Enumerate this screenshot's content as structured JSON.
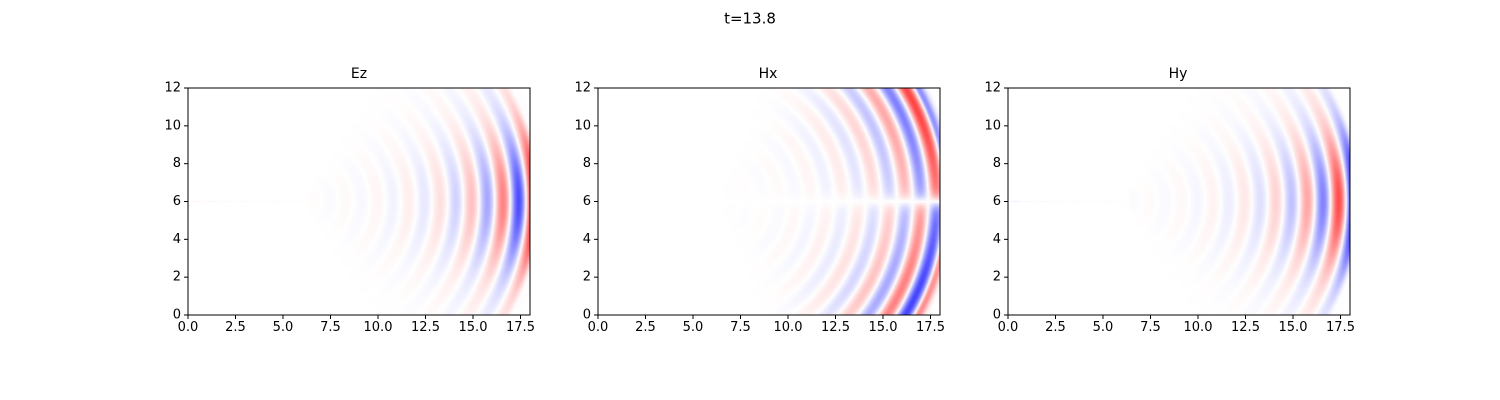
{
  "figure": {
    "suptitle": "t=13.8"
  },
  "colors": {
    "positive": "#ff0000",
    "negative": "#0000ff",
    "zero": "#ffffff",
    "axes": "#000000"
  },
  "chart_data": [
    {
      "type": "heatmap",
      "title": "Ez",
      "xlabel": "",
      "ylabel": "",
      "xlim": [
        0,
        18
      ],
      "ylim": [
        0,
        12
      ],
      "xticks": [
        0,
        2.5,
        5,
        7.5,
        10,
        12.5,
        15,
        17.5
      ],
      "xtick_labels": [
        "0.0",
        "2.5",
        "5.0",
        "7.5",
        "10.0",
        "12.5",
        "15.0",
        "17.5"
      ],
      "yticks": [
        0,
        2,
        4,
        6,
        8,
        10,
        12
      ],
      "ytick_labels": [
        "0",
        "2",
        "4",
        "6",
        "8",
        "10",
        "12"
      ],
      "colormap": "bwr",
      "field": {
        "description_free_params": true,
        "wave_center": [
          6,
          6
        ],
        "front_radius": 12.2,
        "wavelength": 1.65,
        "transverse_profile": "symmetric",
        "peak": 1.0,
        "phase": 0.0
      }
    },
    {
      "type": "heatmap",
      "title": "Hx",
      "xlabel": "",
      "ylabel": "",
      "xlim": [
        0,
        18
      ],
      "ylim": [
        0,
        12
      ],
      "xticks": [
        0,
        2.5,
        5,
        7.5,
        10,
        12.5,
        15,
        17.5
      ],
      "xtick_labels": [
        "0.0",
        "2.5",
        "5.0",
        "7.5",
        "10.0",
        "12.5",
        "15.0",
        "17.5"
      ],
      "yticks": [
        0,
        2,
        4,
        6,
        8,
        10,
        12
      ],
      "ytick_labels": [
        "0",
        "2",
        "4",
        "6",
        "8",
        "10",
        "12"
      ],
      "colormap": "bwr",
      "field": {
        "description_free_params": true,
        "wave_center": [
          6,
          6
        ],
        "front_radius": 12.2,
        "wavelength": 1.65,
        "transverse_profile": "antisymmetric",
        "peak": 1.0,
        "phase": 1.57
      }
    },
    {
      "type": "heatmap",
      "title": "Hy",
      "xlabel": "",
      "ylabel": "",
      "xlim": [
        0,
        18
      ],
      "ylim": [
        0,
        12
      ],
      "xticks": [
        0,
        2.5,
        5,
        7.5,
        10,
        12.5,
        15,
        17.5
      ],
      "xtick_labels": [
        "0.0",
        "2.5",
        "5.0",
        "7.5",
        "10.0",
        "12.5",
        "15.0",
        "17.5"
      ],
      "yticks": [
        0,
        2,
        4,
        6,
        8,
        10,
        12
      ],
      "ytick_labels": [
        "0",
        "2",
        "4",
        "6",
        "8",
        "10",
        "12"
      ],
      "colormap": "bwr",
      "field": {
        "description_free_params": true,
        "wave_center": [
          6,
          6
        ],
        "front_radius": 12.2,
        "wavelength": 1.65,
        "transverse_profile": "symmetric",
        "peak": 1.0,
        "phase": 3.14
      }
    }
  ]
}
